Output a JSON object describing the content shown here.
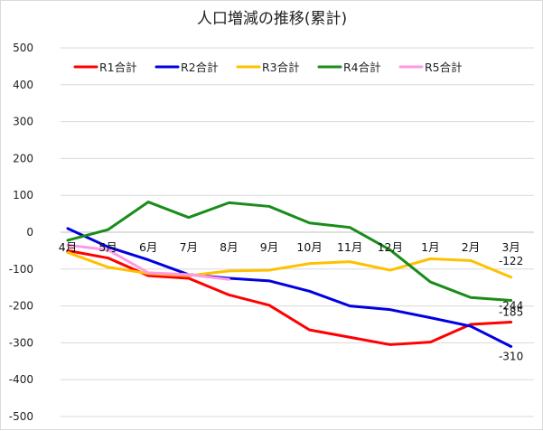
{
  "chart_data": {
    "type": "line",
    "title": "人口増減の推移(累計)",
    "categories": [
      "4月",
      "5月",
      "6月",
      "7月",
      "8月",
      "9月",
      "10月",
      "11月",
      "12月",
      "1月",
      "2月",
      "3月"
    ],
    "ylim": [
      -500,
      500
    ],
    "yticks": [
      500,
      400,
      300,
      200,
      100,
      0,
      -100,
      -200,
      -300,
      -400,
      -500
    ],
    "grid": true,
    "legend_position": "top",
    "series": [
      {
        "name": "R1合計",
        "color": "#ff0000",
        "values": [
          -50,
          -70,
          -118,
          -125,
          -170,
          -198,
          -265,
          -285,
          -305,
          -298,
          -250,
          -244
        ]
      },
      {
        "name": "R2合計",
        "color": "#0000e0",
        "values": [
          10,
          -40,
          -75,
          -115,
          -125,
          -132,
          -160,
          -200,
          -210,
          -232,
          -255,
          -310
        ]
      },
      {
        "name": "R3合計",
        "color": "#ffc000",
        "values": [
          -55,
          -95,
          -112,
          -118,
          -105,
          -103,
          -85,
          -80,
          -103,
          -72,
          -77,
          -122
        ]
      },
      {
        "name": "R4合計",
        "color": "#1a8c1a",
        "values": [
          -22,
          7,
          82,
          40,
          80,
          70,
          25,
          13,
          -48,
          -135,
          -177,
          -185
        ]
      },
      {
        "name": "R5合計",
        "color": "#ff99e6",
        "values": [
          -35,
          -48,
          -110,
          -115,
          -128,
          null,
          null,
          null,
          null,
          null,
          null,
          null
        ]
      }
    ],
    "data_labels": [
      {
        "series": "R3合計",
        "text": "-122"
      },
      {
        "series": "R4合計",
        "text": "-185"
      },
      {
        "series": "R1合計",
        "text": "-244"
      },
      {
        "series": "R2合計",
        "text": "-310"
      }
    ]
  }
}
